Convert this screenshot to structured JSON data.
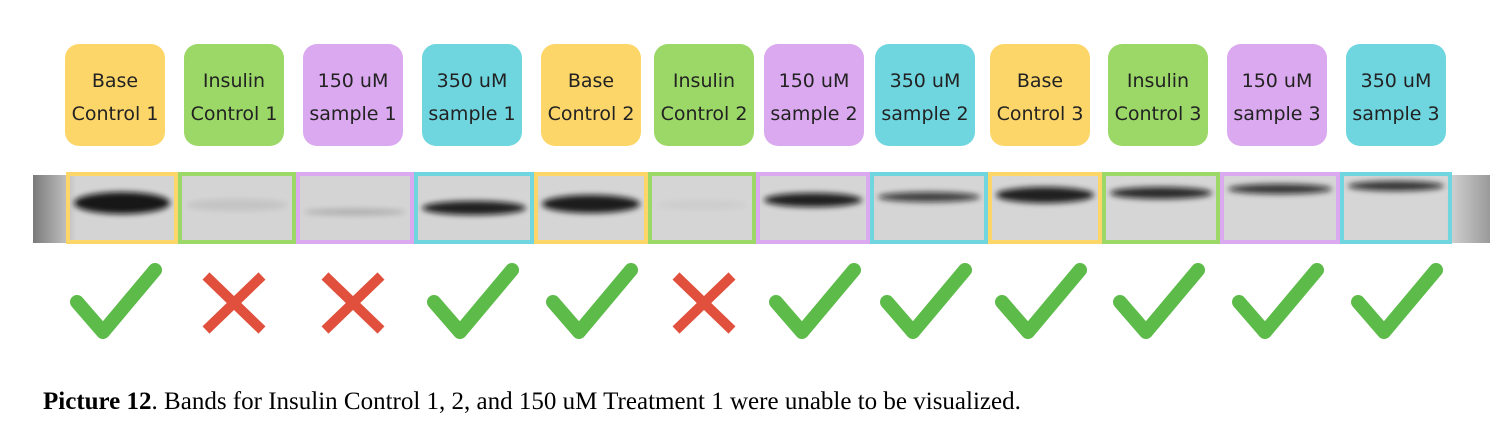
{
  "lanes": [
    {
      "lines": [
        "Base",
        "Control 1"
      ]
    },
    {
      "lines": [
        "Insulin",
        "Control 1"
      ]
    },
    {
      "lines": [
        "150 uM",
        "sample 1"
      ]
    },
    {
      "lines": [
        "350 uM",
        "sample 1"
      ]
    },
    {
      "lines": [
        "Base",
        "Control 2"
      ]
    },
    {
      "lines": [
        "Insulin",
        "Control 2"
      ]
    },
    {
      "lines": [
        "150 uM",
        "sample 2"
      ]
    },
    {
      "lines": [
        "350 uM",
        "sample 2"
      ]
    },
    {
      "lines": [
        "Base",
        "Control 3"
      ]
    },
    {
      "lines": [
        "Insulin",
        "Control 3"
      ]
    },
    {
      "lines": [
        "150 uM",
        "sample 3"
      ]
    },
    {
      "lines": [
        "350 uM",
        "sample 3"
      ]
    }
  ],
  "caption": {
    "label": "Picture 12",
    "text": ". Bands for Insulin Control 1, 2, and 150 uM Treatment 1 were unable to be visualized."
  }
}
